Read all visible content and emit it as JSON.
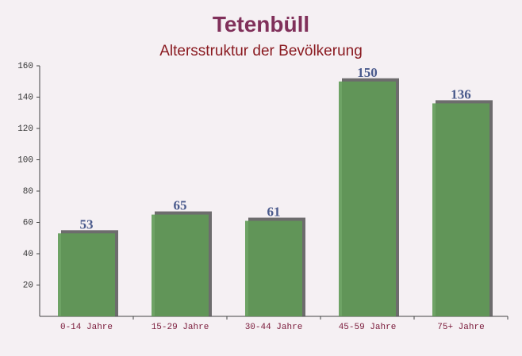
{
  "chart_data": {
    "type": "bar",
    "title": "Tetenbüll",
    "subtitle": "Altersstruktur der Bevölkerung",
    "categories": [
      "0-14 Jahre",
      "15-29 Jahre",
      "30-44 Jahre",
      "45-59 Jahre",
      "75+ Jahre"
    ],
    "values": [
      53,
      65,
      61,
      150,
      136
    ],
    "color": "#5f9a55",
    "ylim": [
      0,
      160
    ],
    "yticks": [
      20,
      40,
      60,
      80,
      100,
      120,
      140,
      160
    ]
  }
}
